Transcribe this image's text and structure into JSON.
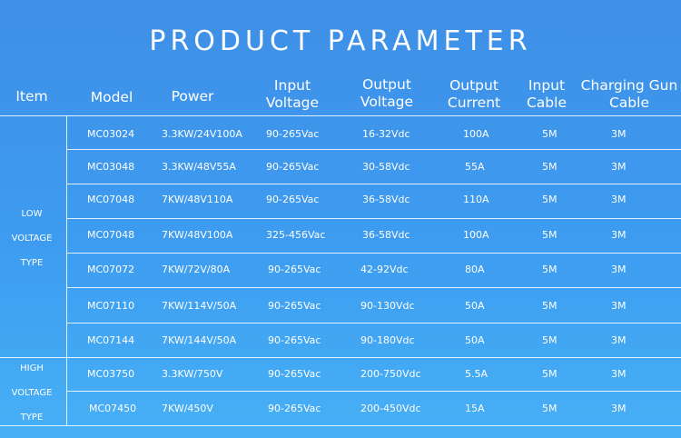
{
  "title": "PRODUCT PARAMETER",
  "headers": {
    "item": "Item",
    "model": "Model",
    "power": "Power",
    "input_voltage": [
      "Input",
      "Voltage"
    ],
    "output_voltage": [
      "Output",
      "Voltage"
    ],
    "output_current": [
      "Output",
      "Current"
    ],
    "input_cable": [
      "Input",
      "Cable"
    ],
    "charging_gun_cable": [
      "Charging Gun",
      "Cable"
    ]
  },
  "groups": {
    "low": [
      "LOW",
      "VOLTAGE",
      "TYPE"
    ],
    "high": [
      "HIGH",
      "VOLTAGE",
      "TYPE"
    ]
  },
  "rows": [
    {
      "model": "MC03024",
      "power": "3.3KW/24V100A",
      "input_voltage": "90-265Vac",
      "output_voltage": "16-32Vdc",
      "output_current": "100A",
      "input_cable": "5M",
      "gun_cable": "3M"
    },
    {
      "model": "MC03048",
      "power": "3.3KW/48V55A",
      "input_voltage": "90-265Vac",
      "output_voltage": "30-58Vdc",
      "output_current": "55A",
      "input_cable": "5M",
      "gun_cable": "3M"
    },
    {
      "model": "MC07048",
      "power": "7KW/48V110A",
      "input_voltage": "90-265Vac",
      "output_voltage": "36-58Vdc",
      "output_current": "110A",
      "input_cable": "5M",
      "gun_cable": "3M"
    },
    {
      "model": "MC07048",
      "power": "7KW/48V100A",
      "input_voltage": "325-456Vac",
      "output_voltage": "36-58Vdc",
      "output_current": "100A",
      "input_cable": "5M",
      "gun_cable": "3M"
    },
    {
      "model": "MC07072",
      "power": "7KW/72V/80A",
      "input_voltage": "90-265Vac",
      "output_voltage": "42-92Vdc",
      "output_current": "80A",
      "input_cable": "5M",
      "gun_cable": "3M"
    },
    {
      "model": "MC07110",
      "power": "7KW/114V/50A",
      "input_voltage": "90-265Vac",
      "output_voltage": "90-130Vdc",
      "output_current": "50A",
      "input_cable": "5M",
      "gun_cable": "3M"
    },
    {
      "model": "MC07144",
      "power": "7KW/144V/50A",
      "input_voltage": "90-265Vac",
      "output_voltage": "90-180Vdc",
      "output_current": "50A",
      "input_cable": "5M",
      "gun_cable": "3M"
    },
    {
      "model": "MC03750",
      "power": "3.3KW/750V",
      "input_voltage": "90-265Vac",
      "output_voltage": "200-750Vdc",
      "output_current": "5.5A",
      "input_cable": "5M",
      "gun_cable": "3M"
    },
    {
      "model": "MC07450",
      "power": "7KW/450V",
      "input_voltage": "90-265Vac",
      "output_voltage": "200-450Vdc",
      "output_current": "15A",
      "input_cable": "5M",
      "gun_cable": "3M"
    }
  ]
}
